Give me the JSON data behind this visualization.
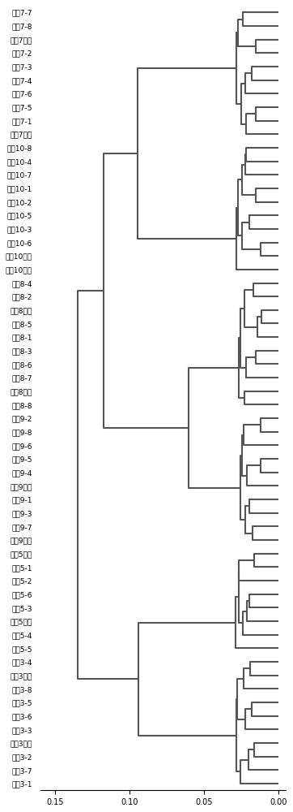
{
  "labels": [
    "家系8-1",
    "家系8-2",
    "家系8-6",
    "家系8-7",
    "家系8-8",
    "家系8-5",
    "家系8父本",
    "家系8-4",
    "家系8母本",
    "家系8-3",
    "家系9母本",
    "家系9-4",
    "家系9-8",
    "家系9-3",
    "家系9-5",
    "家系9-6",
    "家系9父本",
    "家系9-1",
    "家系9-2",
    "家系9-7",
    "家系10-2",
    "家系10-4",
    "家系10-8",
    "家系10父本",
    "家系10-3",
    "家系10-1",
    "家系10-7",
    "家系10-5",
    "家系10母本",
    "家系10-6",
    "家系7-1",
    "家系7-2",
    "家系7父本",
    "家系7-8",
    "家系7-5",
    "家系7-6",
    "家系7母本",
    "家系7-4",
    "家系7-3",
    "家系7-7",
    "家系5-2",
    "家系5-5",
    "家系5父本",
    "家系5-3",
    "家系5-6",
    "家系5-1",
    "家系5-4",
    "家系5母本",
    "家系3-1",
    "家系3-3",
    "家系3父本",
    "家系3-7",
    "家系3-2",
    "家系3-8",
    "家系3-6",
    "家系3母本",
    "家系3-4",
    "家系3-5"
  ],
  "xlim": [
    0.16,
    -0.005
  ],
  "xticks": [
    0.15,
    0.1,
    0.05,
    0.0
  ],
  "xticklabels": [
    "0.15",
    "0.10",
    "0.05",
    "0.00"
  ],
  "figsize": [
    3.62,
    10.0
  ],
  "dpi": 100,
  "line_color": "#555555",
  "line_width": 0.8,
  "font_size": 6.5,
  "axis_font_size": 7
}
